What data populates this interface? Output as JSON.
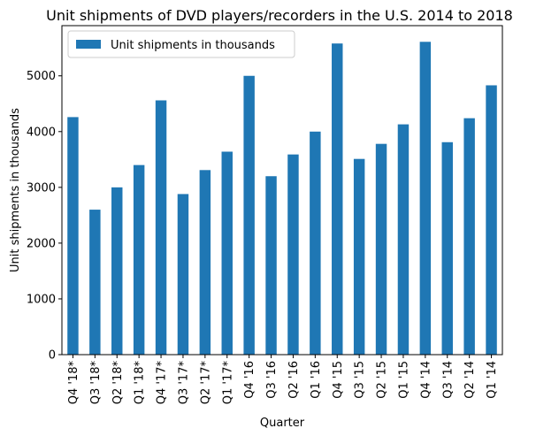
{
  "chart_data": {
    "type": "bar",
    "title": "Unit shipments of DVD players/recorders in the U.S. 2014 to 2018",
    "xlabel": "Quarter",
    "ylabel": "Unit shipments in thousands",
    "ylim": [
      0,
      5900
    ],
    "yticks": [
      0,
      1000,
      2000,
      3000,
      4000,
      5000
    ],
    "grid": false,
    "legend_position": "top-left",
    "bar_color": "#1f77b4",
    "categories": [
      "Q4 '18*",
      "Q3 '18*",
      "Q2 '18*",
      "Q1 '18*",
      "Q4 '17*",
      "Q3 '17*",
      "Q2 '17*",
      "Q1 '17*",
      "Q4 '16",
      "Q3 '16",
      "Q2 '16",
      "Q1 '16",
      "Q4 '15",
      "Q3 '15",
      "Q2 '15",
      "Q1 '15",
      "Q4 '14",
      "Q3 '14",
      "Q2 '14",
      "Q1 '14"
    ],
    "series": [
      {
        "name": "Unit shipments in thousands",
        "values": [
          4260,
          2600,
          3000,
          3400,
          4560,
          2880,
          3310,
          3640,
          5000,
          3200,
          3590,
          4000,
          5580,
          3510,
          3780,
          4130,
          5610,
          3810,
          4240,
          4830
        ]
      }
    ]
  }
}
